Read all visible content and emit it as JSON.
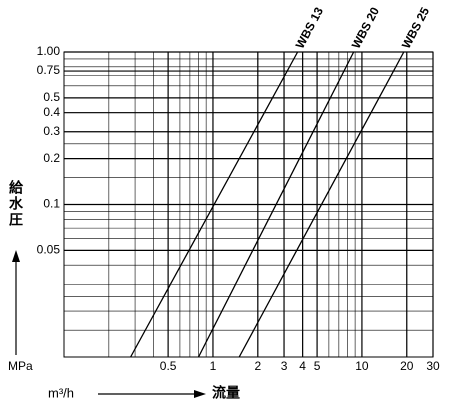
{
  "chart_data": {
    "type": "line",
    "xlabel": "流量",
    "xunit": "m³/h",
    "ylabel": "給水圧",
    "yunit": "MPa",
    "xscale": "log",
    "yscale": "log",
    "grid": true,
    "xlim": [
      0.1,
      30
    ],
    "ylim": [
      0.01,
      1
    ],
    "xticks": [
      0.5,
      1,
      2,
      3,
      4,
      5,
      10,
      20,
      30
    ],
    "yticks": [
      {
        "value": 1,
        "label": "1.00"
      },
      0.75,
      0.5,
      0.4,
      0.3,
      0.2,
      0.1,
      0.05
    ],
    "series": [
      {
        "name": "WBS 13",
        "color": "#000000",
        "x": [
          0.28,
          3.7
        ],
        "values": [
          0.01,
          1
        ]
      },
      {
        "name": "WBS 20",
        "color": "#000000",
        "x": [
          0.8,
          8.8
        ],
        "values": [
          0.01,
          1
        ]
      },
      {
        "name": "WBS 25",
        "color": "#000000",
        "x": [
          1.5,
          19.1
        ],
        "values": [
          0.01,
          1
        ]
      }
    ]
  }
}
